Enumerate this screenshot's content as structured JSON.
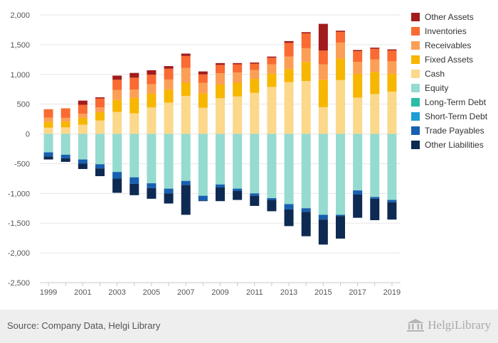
{
  "chart_data": {
    "type": "bar",
    "stacked": true,
    "categories": [
      "1999",
      "2000",
      "2001",
      "2002",
      "2003",
      "2004",
      "2005",
      "2006",
      "2007",
      "2008",
      "2009",
      "2010",
      "2011",
      "2012",
      "2013",
      "2014",
      "2015",
      "2016",
      "2017",
      "2018",
      "2019"
    ],
    "x_tick_labels": [
      "1999",
      "2001",
      "2003",
      "2005",
      "2007",
      "2009",
      "2011",
      "2013",
      "2015",
      "2017",
      "2019"
    ],
    "ylim": [
      -2500,
      2000
    ],
    "y_ticks": [
      2000,
      1500,
      1000,
      500,
      0,
      -500,
      -1000,
      -1500,
      -2000,
      -2500
    ],
    "y_tick_labels": [
      "2,000",
      "1,500",
      "1,000",
      "500",
      "0",
      "-500",
      "-1,000",
      "-1,500",
      "-2,000",
      "-2,500"
    ],
    "grid": true,
    "legend_position": "right",
    "positive_series": [
      {
        "name": "Cash",
        "color": "#fbd88a",
        "values": [
          105,
          110,
          155,
          225,
          370,
          345,
          445,
          525,
          640,
          440,
          600,
          630,
          690,
          790,
          870,
          890,
          450,
          905,
          610,
          670,
          710
        ]
      },
      {
        "name": "Fixed Assets",
        "color": "#f7b600",
        "values": [
          100,
          95,
          115,
          140,
          200,
          260,
          230,
          220,
          220,
          240,
          230,
          230,
          235,
          220,
          220,
          320,
          460,
          360,
          400,
          370,
          300
        ]
      },
      {
        "name": "Receivables",
        "color": "#fb9f57",
        "values": [
          70,
          65,
          70,
          80,
          170,
          140,
          160,
          170,
          250,
          180,
          190,
          170,
          150,
          160,
          210,
          230,
          260,
          270,
          200,
          210,
          210
        ]
      },
      {
        "name": "Inventories",
        "color": "#f96b32",
        "values": [
          140,
          160,
          150,
          150,
          170,
          200,
          160,
          180,
          200,
          140,
          140,
          140,
          105,
          110,
          230,
          250,
          230,
          180,
          180,
          180,
          180
        ]
      },
      {
        "name": "Other Assets",
        "color": "#a11c1c",
        "values": [
          0,
          0,
          70,
          20,
          70,
          80,
          75,
          45,
          40,
          50,
          30,
          20,
          20,
          20,
          30,
          20,
          450,
          20,
          20,
          20,
          20
        ]
      }
    ],
    "negative_series": [
      {
        "name": "Equity",
        "color": "#95dbd0",
        "values": [
          -310,
          -350,
          -430,
          -510,
          -640,
          -730,
          -830,
          -920,
          -790,
          -1040,
          -850,
          -920,
          -1000,
          -1080,
          -1180,
          -1250,
          -1360,
          -1360,
          -950,
          -1060,
          -1110
        ]
      },
      {
        "name": "Long-Term Debt",
        "color": "#2ebba5",
        "values": [
          0,
          0,
          0,
          0,
          0,
          0,
          0,
          0,
          0,
          0,
          0,
          0,
          0,
          0,
          0,
          0,
          0,
          0,
          0,
          0,
          0
        ]
      },
      {
        "name": "Short-Term Debt",
        "color": "#1e9ed6",
        "values": [
          0,
          0,
          0,
          0,
          0,
          0,
          0,
          0,
          0,
          0,
          0,
          0,
          0,
          0,
          0,
          0,
          0,
          0,
          0,
          0,
          0
        ]
      },
      {
        "name": "Trade Payables",
        "color": "#1860b0",
        "values": [
          -70,
          -60,
          -70,
          -70,
          -110,
          -110,
          -80,
          -80,
          -70,
          -80,
          -50,
          -40,
          -40,
          -30,
          -90,
          -60,
          -80,
          -20,
          -70,
          -30,
          -40
        ]
      },
      {
        "name": "Other Liabilities",
        "color": "#0e2a52",
        "values": [
          -50,
          -60,
          -90,
          -130,
          -240,
          -190,
          -180,
          -170,
          -500,
          -10,
          -230,
          -150,
          -170,
          -190,
          -280,
          -410,
          -420,
          -380,
          -390,
          -360,
          -290
        ]
      }
    ],
    "legend": [
      {
        "name": "Other Assets",
        "color": "#a11c1c"
      },
      {
        "name": "Inventories",
        "color": "#f96b32"
      },
      {
        "name": "Receivables",
        "color": "#fb9f57"
      },
      {
        "name": "Fixed Assets",
        "color": "#f7b600"
      },
      {
        "name": "Cash",
        "color": "#fbd88a"
      },
      {
        "name": "Equity",
        "color": "#95dbd0"
      },
      {
        "name": "Long-Term Debt",
        "color": "#2ebba5"
      },
      {
        "name": "Short-Term Debt",
        "color": "#1e9ed6"
      },
      {
        "name": "Trade Payables",
        "color": "#1860b0"
      },
      {
        "name": "Other Liabilities",
        "color": "#0e2a52"
      }
    ]
  },
  "legend": {
    "items": [
      {
        "label": "Other Assets",
        "color": "#a11c1c"
      },
      {
        "label": "Inventories",
        "color": "#f96b32"
      },
      {
        "label": "Receivables",
        "color": "#fb9f57"
      },
      {
        "label": "Fixed Assets",
        "color": "#f7b600"
      },
      {
        "label": "Cash",
        "color": "#fbd88a"
      },
      {
        "label": "Equity",
        "color": "#95dbd0"
      },
      {
        "label": "Long-Term Debt",
        "color": "#2ebba5"
      },
      {
        "label": "Short-Term Debt",
        "color": "#1e9ed6"
      },
      {
        "label": "Trade Payables",
        "color": "#1860b0"
      },
      {
        "label": "Other Liabilities",
        "color": "#0e2a52"
      }
    ]
  },
  "footer": {
    "source": "Source: Company Data, Helgi Library",
    "logo_text": "HelgiLibrary",
    "logo_icon": "helgi-library-building-icon"
  }
}
